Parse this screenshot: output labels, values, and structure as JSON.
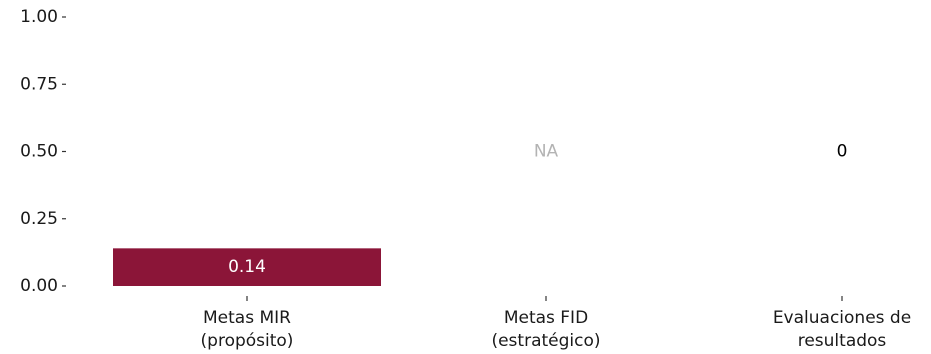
{
  "chart_data": {
    "type": "bar",
    "title": "",
    "xlabel": "",
    "ylabel": "",
    "ylim": [
      0,
      1
    ],
    "yticks": [
      {
        "value": 0,
        "label": "0.00"
      },
      {
        "value": 0.25,
        "label": "0.25"
      },
      {
        "value": 0.5,
        "label": "0.50"
      },
      {
        "value": 0.75,
        "label": "0.75"
      },
      {
        "value": 1,
        "label": "1.00"
      }
    ],
    "grid": false,
    "legend": "none",
    "bar_color": "#8b1538",
    "categories": [
      {
        "lines": [
          "Metas MIR",
          "(propósito)"
        ]
      },
      {
        "lines": [
          "Metas FID",
          "(estratégico)"
        ]
      },
      {
        "lines": [
          "Evaluaciones de",
          "resultados"
        ]
      }
    ],
    "values": [
      0.14,
      null,
      0
    ],
    "value_labels": [
      "0.14",
      "NA",
      "0"
    ],
    "value_label_colors": [
      "#ffffff",
      "#b3b3b3",
      "#000000"
    ]
  }
}
